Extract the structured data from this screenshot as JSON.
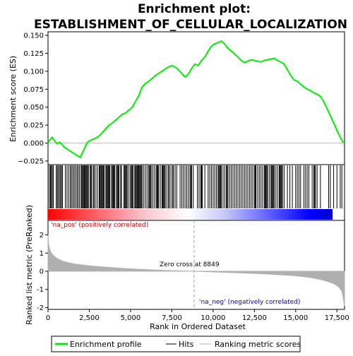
{
  "chart_data": {
    "type": "line",
    "title": "Enrichment plot:",
    "subtitle": "ESTABLISHMENT_OF_CELLULAR_LOCALIZATION",
    "colors": {
      "enrichment_profile": "#00ee00",
      "hits": "#000000",
      "ranking_metric": "#b0b0b0",
      "positive": "#ff0000",
      "negative": "#0000ff",
      "zero_cross_line": "#a0a0a0"
    },
    "top_panel": {
      "ylabel": "Enrichment score (ES)",
      "ylim": [
        -0.03,
        0.155
      ],
      "yticks": [
        -0.025,
        0.0,
        0.025,
        0.05,
        0.075,
        0.1,
        0.125,
        0.15
      ],
      "ytick_labels": [
        "−0.025",
        "0.000",
        "0.025",
        "0.050",
        "0.075",
        "0.100",
        "0.125",
        "0.150"
      ],
      "series": [
        {
          "name": "Enrichment profile",
          "x": [
            0,
            100,
            250,
            400,
            550,
            700,
            850,
            1000,
            1200,
            1400,
            1600,
            1800,
            1950,
            2050,
            2200,
            2350,
            2500,
            2700,
            2900,
            3100,
            3300,
            3500,
            3700,
            3900,
            4100,
            4300,
            4500,
            4700,
            4900,
            5100,
            5300,
            5500,
            5700,
            5900,
            6100,
            6300,
            6500,
            6700,
            6900,
            7100,
            7300,
            7500,
            7700,
            7900,
            8100,
            8300,
            8500,
            8700,
            8900,
            9100,
            9300,
            9500,
            9700,
            9900,
            10100,
            10300,
            10500,
            10700,
            10900,
            11100,
            11300,
            11500,
            11700,
            11900,
            12100,
            12300,
            12500,
            12700,
            12900,
            13100,
            13300,
            13500,
            13700,
            13900,
            14100,
            14300,
            14500,
            14700,
            14900,
            15100,
            15300,
            15500,
            15700,
            15900,
            16100,
            16300,
            16500,
            16700,
            16900,
            17100,
            17300,
            17500,
            17700,
            17900
          ],
          "y": [
            0.0,
            0.004,
            0.008,
            0.003,
            -0.001,
            0.001,
            -0.002,
            -0.006,
            -0.009,
            -0.012,
            -0.015,
            -0.018,
            -0.02,
            -0.015,
            -0.008,
            0.0,
            0.003,
            0.005,
            0.007,
            0.01,
            0.015,
            0.02,
            0.025,
            0.028,
            0.032,
            0.036,
            0.04,
            0.042,
            0.046,
            0.05,
            0.058,
            0.066,
            0.078,
            0.083,
            0.086,
            0.09,
            0.094,
            0.097,
            0.1,
            0.103,
            0.106,
            0.108,
            0.106,
            0.102,
            0.097,
            0.092,
            0.096,
            0.104,
            0.11,
            0.108,
            0.115,
            0.12,
            0.128,
            0.135,
            0.138,
            0.14,
            0.142,
            0.138,
            0.132,
            0.128,
            0.124,
            0.12,
            0.115,
            0.112,
            0.114,
            0.116,
            0.115,
            0.114,
            0.113,
            0.115,
            0.116,
            0.117,
            0.118,
            0.115,
            0.113,
            0.11,
            0.102,
            0.094,
            0.088,
            0.086,
            0.082,
            0.078,
            0.075,
            0.073,
            0.07,
            0.068,
            0.065,
            0.058,
            0.048,
            0.038,
            0.028,
            0.018,
            0.008,
            0.0
          ]
        }
      ]
    },
    "hits_panel": {
      "name": "Hits",
      "positive_label": "'na_pos' (positively correlated)",
      "hit_positions": [
        80,
        150,
        200,
        260,
        320,
        500,
        560,
        620,
        700,
        760,
        820,
        880,
        1050,
        1150,
        1250,
        1350,
        1420,
        1500,
        1580,
        1660,
        1750,
        1820,
        1900,
        2000,
        2050,
        2100,
        2150,
        2200,
        2250,
        2300,
        2350,
        2400,
        2450,
        2550,
        2600,
        2650,
        2750,
        2800,
        2900,
        3000,
        3100,
        3150,
        3200,
        3250,
        3300,
        3350,
        3400,
        3500,
        3550,
        3600,
        3650,
        3700,
        3750,
        3850,
        3900,
        3950,
        4000,
        4050,
        4150,
        4200,
        4250,
        4300,
        4400,
        4450,
        4600,
        4650,
        4700,
        4750,
        4800,
        4900,
        5000,
        5050,
        5100,
        5150,
        5250,
        5300,
        5350,
        5400,
        5450,
        5500,
        5550,
        5600,
        5650,
        5700,
        5800,
        5900,
        6000,
        6100,
        6150,
        6200,
        6250,
        6350,
        6450,
        6550,
        6600,
        6650,
        6700,
        6800,
        6900,
        6950,
        7000,
        7050,
        7100,
        7200,
        7300,
        7350,
        7450,
        7550,
        7600,
        7700,
        7800,
        8000,
        8100,
        8200,
        8300,
        8400,
        8500,
        8600,
        8650,
        8700,
        8800,
        9050,
        9150,
        9250,
        9300,
        9350,
        9500,
        9700,
        9800,
        9900,
        10000,
        10100,
        10200,
        10300,
        10350,
        10400,
        10450,
        10500,
        10600,
        10700,
        10800,
        10850,
        10900,
        11000,
        11100,
        11200,
        11300,
        11400,
        11500,
        11600,
        11700,
        11800,
        11900,
        12000,
        12100,
        12200,
        12300,
        12400,
        12500,
        12550,
        12600,
        12700,
        12800,
        12900,
        13000,
        13100,
        13150,
        13200,
        13250,
        13300,
        13400,
        13500,
        13550,
        13600,
        13650,
        13700,
        13800,
        13900,
        14000,
        14050,
        14100,
        14150,
        14200,
        14300,
        14500,
        14650,
        14800,
        15000,
        15100,
        15200,
        15300,
        15500,
        15600,
        15700,
        15800,
        16000,
        16100,
        16150,
        16200,
        16300,
        16500,
        17000,
        17100,
        17300,
        17500,
        17700,
        17800
      ]
    },
    "bottom_panel": {
      "name": "Ranking metric scores",
      "ylabel": "Ranked list metric (PreRanked)",
      "xlabel": "Rank in Ordered Dataset",
      "ylim": [
        -2.1,
        2.8
      ],
      "yticks": [
        -2,
        -1,
        0,
        1,
        2
      ],
      "ytick_labels": [
        "-2",
        "-1",
        "0",
        "1",
        "2"
      ],
      "x": [
        0,
        30,
        80,
        150,
        250,
        400,
        600,
        900,
        1300,
        1800,
        2500,
        3500,
        4500,
        5500,
        6500,
        7500,
        8849,
        10000,
        11000,
        12000,
        13000,
        14000,
        15000,
        15800,
        16400,
        16900,
        17300,
        17600,
        17800,
        17880,
        17930,
        17960
      ],
      "y": [
        2.0,
        1.55,
        1.3,
        1.1,
        0.95,
        0.8,
        0.68,
        0.55,
        0.45,
        0.38,
        0.3,
        0.22,
        0.16,
        0.11,
        0.07,
        0.03,
        0.0,
        -0.04,
        -0.07,
        -0.1,
        -0.14,
        -0.19,
        -0.25,
        -0.33,
        -0.43,
        -0.55,
        -0.68,
        -0.85,
        -1.1,
        -1.45,
        -1.75,
        -1.9
      ],
      "zero_cross_label": "Zero cross at 8849",
      "zero_cross": 8849,
      "negative_label": "'na_neg' (negatively correlated)"
    },
    "xlim": [
      0,
      17960
    ],
    "xticks": [
      0,
      2500,
      5000,
      7500,
      10000,
      12500,
      15000,
      17500
    ],
    "xtick_labels": [
      "0",
      "2,500",
      "5,000",
      "7,500",
      "10,000",
      "12,500",
      "15,000",
      "17,500"
    ],
    "legend": {
      "placement": "bottom",
      "entries": [
        "Enrichment profile",
        "Hits",
        "Ranking metric scores"
      ]
    }
  }
}
